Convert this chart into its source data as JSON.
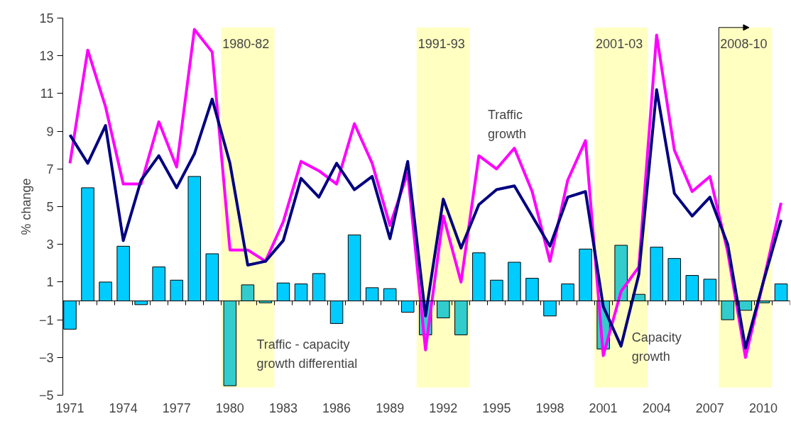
{
  "chart_data": {
    "type": "bar",
    "ylabel": "% change",
    "x": [
      1971,
      1972,
      1973,
      1974,
      1975,
      1976,
      1977,
      1978,
      1979,
      1980,
      1981,
      1982,
      1983,
      1984,
      1985,
      1986,
      1987,
      1988,
      1989,
      1990,
      1991,
      1992,
      1993,
      1994,
      1995,
      1996,
      1997,
      1998,
      1999,
      2000,
      2001,
      2002,
      2003,
      2004,
      2005,
      2006,
      2007,
      2008,
      2009,
      2010,
      2011
    ],
    "xlim": [
      1970.6,
      2011.5
    ],
    "xticks": [
      1971,
      1974,
      1977,
      1980,
      1983,
      1986,
      1989,
      1992,
      1995,
      1998,
      2001,
      2004,
      2007,
      2010
    ],
    "ylim": [
      -5,
      15
    ],
    "yticks": [
      -5,
      -3,
      -1,
      1,
      3,
      5,
      7,
      9,
      11,
      13,
      15
    ],
    "grid": false,
    "legend": false,
    "series": [
      {
        "name": "Traffic - capacity growth differential",
        "color": "#00ccff",
        "colors": [
          "#00ccff",
          "#00ccff",
          "#00ccff",
          "#00ccff",
          "#00ccff",
          "#00ccff",
          "#00ccff",
          "#00ccff",
          "#00ccff",
          "#33cccc",
          "#33cccc",
          "#33cccc",
          "#00ccff",
          "#00ccff",
          "#00ccff",
          "#00ccff",
          "#00ccff",
          "#00ccff",
          "#00ccff",
          "#00ccff",
          "#33cccc",
          "#33cccc",
          "#33cccc",
          "#00ccff",
          "#00ccff",
          "#00ccff",
          "#00ccff",
          "#00ccff",
          "#00ccff",
          "#00ccff",
          "#33cccc",
          "#33cccc",
          "#33cccc",
          "#00ccff",
          "#00ccff",
          "#00ccff",
          "#00ccff",
          "#33cccc",
          "#33cccc",
          "#33cccc",
          "#00ccff"
        ],
        "values": [
          -1.5,
          6.0,
          1.0,
          2.9,
          -0.2,
          1.8,
          1.1,
          6.6,
          2.5,
          -4.5,
          0.85,
          -0.1,
          0.95,
          0.9,
          1.45,
          -1.2,
          3.5,
          0.7,
          0.65,
          -0.6,
          -1.8,
          -0.9,
          -1.8,
          2.55,
          1.1,
          2.05,
          1.2,
          -0.8,
          0.9,
          2.75,
          -2.55,
          2.95,
          0.35,
          2.85,
          2.25,
          1.35,
          1.15,
          -1.0,
          -0.5,
          -0.1,
          0.9
        ]
      },
      {
        "name": "Traffic growth",
        "type": "line",
        "color": "#ff00ff",
        "values": [
          7.3,
          13.3,
          10.3,
          6.2,
          6.2,
          9.5,
          7.1,
          14.4,
          13.2,
          2.7,
          2.7,
          2.1,
          4.2,
          7.4,
          6.9,
          6.2,
          9.4,
          7.3,
          4.0,
          6.8,
          -2.6,
          4.5,
          1.0,
          7.7,
          7.0,
          8.1,
          5.8,
          2.1,
          6.4,
          8.5,
          -2.9,
          0.5,
          1.8,
          14.1,
          8.0,
          5.8,
          6.6,
          2.6,
          -3.0,
          1.0,
          5.2
        ]
      },
      {
        "name": "Capacity growth",
        "type": "line",
        "color": "#000080",
        "values": [
          8.8,
          7.3,
          9.3,
          3.2,
          6.4,
          7.7,
          6.0,
          7.8,
          10.7,
          7.3,
          1.9,
          2.1,
          3.2,
          6.5,
          5.5,
          7.3,
          5.9,
          6.6,
          3.3,
          7.4,
          -0.8,
          5.4,
          2.8,
          5.1,
          5.9,
          6.1,
          4.5,
          2.9,
          5.5,
          5.8,
          -0.3,
          -2.4,
          1.4,
          11.2,
          5.7,
          4.5,
          5.5,
          3.0,
          -2.5,
          1.0,
          4.3
        ]
      }
    ],
    "bands": [
      {
        "axis": "x",
        "from": 1979.5,
        "to": 1982.5,
        "label": "1980-82",
        "color": "#ffff99"
      },
      {
        "axis": "x",
        "from": 1990.5,
        "to": 1993.5,
        "label": "1991-93",
        "color": "#ffff99"
      },
      {
        "axis": "x",
        "from": 2000.5,
        "to": 2003.5,
        "label": "2001-03",
        "color": "#ffff99"
      },
      {
        "axis": "x",
        "from": 2007.5,
        "to": 2010.5,
        "label": "2008-10",
        "color": "#ffff99"
      }
    ],
    "ref_lines": [
      {
        "axis": "x",
        "value": 2007.5,
        "color": "#000000",
        "line_style": "solid"
      }
    ]
  }
}
